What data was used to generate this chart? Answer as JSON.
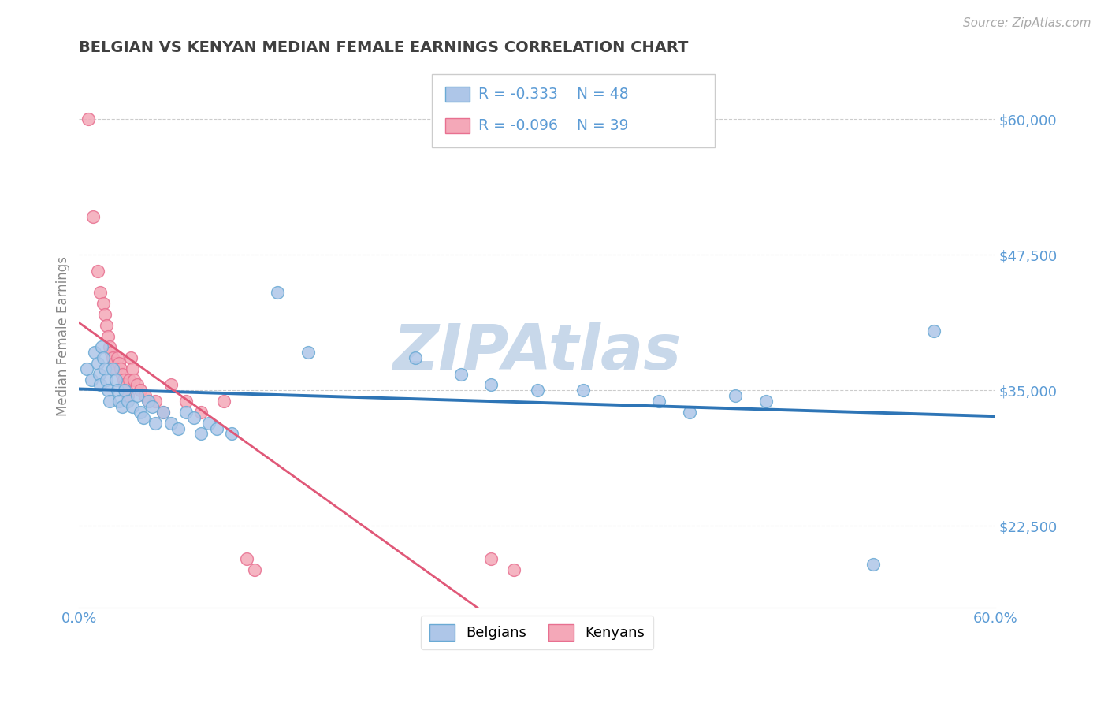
{
  "title": "BELGIAN VS KENYAN MEDIAN FEMALE EARNINGS CORRELATION CHART",
  "source": "Source: ZipAtlas.com",
  "ylabel": "Median Female Earnings",
  "xlim": [
    0.0,
    0.6
  ],
  "ylim": [
    15000,
    65000
  ],
  "yticks": [
    22500,
    35000,
    47500,
    60000
  ],
  "ytick_labels": [
    "$22,500",
    "$35,000",
    "$47,500",
    "$60,000"
  ],
  "xticks": [
    0.0,
    0.6
  ],
  "xtick_labels": [
    "0.0%",
    "60.0%"
  ],
  "legend_labels": [
    "Belgians",
    "Kenyans"
  ],
  "legend_r_n": [
    {
      "r": "-0.333",
      "n": "48"
    },
    {
      "r": "-0.096",
      "n": "39"
    }
  ],
  "blue_color": "#aec6e8",
  "pink_color": "#f4a8b8",
  "blue_edge_color": "#6aaad4",
  "pink_edge_color": "#e87090",
  "blue_line_color": "#2e75b6",
  "pink_line_color": "#e05878",
  "watermark_color": "#c8d8ea",
  "title_color": "#404040",
  "axis_label_color": "#5b9bd5",
  "grid_color": "#cccccc",
  "blue_scatter": [
    [
      0.005,
      37000
    ],
    [
      0.008,
      36000
    ],
    [
      0.01,
      38500
    ],
    [
      0.012,
      37500
    ],
    [
      0.013,
      36500
    ],
    [
      0.014,
      35500
    ],
    [
      0.015,
      39000
    ],
    [
      0.016,
      38000
    ],
    [
      0.017,
      37000
    ],
    [
      0.018,
      36000
    ],
    [
      0.019,
      35000
    ],
    [
      0.02,
      34000
    ],
    [
      0.022,
      37000
    ],
    [
      0.024,
      36000
    ],
    [
      0.025,
      35000
    ],
    [
      0.026,
      34000
    ],
    [
      0.028,
      33500
    ],
    [
      0.03,
      35000
    ],
    [
      0.032,
      34000
    ],
    [
      0.035,
      33500
    ],
    [
      0.038,
      34500
    ],
    [
      0.04,
      33000
    ],
    [
      0.042,
      32500
    ],
    [
      0.045,
      34000
    ],
    [
      0.048,
      33500
    ],
    [
      0.05,
      32000
    ],
    [
      0.055,
      33000
    ],
    [
      0.06,
      32000
    ],
    [
      0.065,
      31500
    ],
    [
      0.07,
      33000
    ],
    [
      0.075,
      32500
    ],
    [
      0.08,
      31000
    ],
    [
      0.085,
      32000
    ],
    [
      0.09,
      31500
    ],
    [
      0.1,
      31000
    ],
    [
      0.13,
      44000
    ],
    [
      0.15,
      38500
    ],
    [
      0.22,
      38000
    ],
    [
      0.25,
      36500
    ],
    [
      0.27,
      35500
    ],
    [
      0.3,
      35000
    ],
    [
      0.33,
      35000
    ],
    [
      0.38,
      34000
    ],
    [
      0.4,
      33000
    ],
    [
      0.43,
      34500
    ],
    [
      0.45,
      34000
    ],
    [
      0.52,
      19000
    ],
    [
      0.56,
      40500
    ]
  ],
  "pink_scatter": [
    [
      0.006,
      60000
    ],
    [
      0.009,
      51000
    ],
    [
      0.012,
      46000
    ],
    [
      0.014,
      44000
    ],
    [
      0.016,
      43000
    ],
    [
      0.017,
      42000
    ],
    [
      0.018,
      41000
    ],
    [
      0.019,
      40000
    ],
    [
      0.02,
      39000
    ],
    [
      0.021,
      38500
    ],
    [
      0.022,
      38000
    ],
    [
      0.023,
      37500
    ],
    [
      0.024,
      37000
    ],
    [
      0.025,
      38000
    ],
    [
      0.026,
      37500
    ],
    [
      0.027,
      37000
    ],
    [
      0.028,
      36500
    ],
    [
      0.029,
      36000
    ],
    [
      0.03,
      35500
    ],
    [
      0.031,
      35000
    ],
    [
      0.032,
      34500
    ],
    [
      0.033,
      36000
    ],
    [
      0.034,
      38000
    ],
    [
      0.035,
      37000
    ],
    [
      0.036,
      36000
    ],
    [
      0.038,
      35500
    ],
    [
      0.04,
      35000
    ],
    [
      0.043,
      34500
    ],
    [
      0.046,
      34000
    ],
    [
      0.05,
      34000
    ],
    [
      0.055,
      33000
    ],
    [
      0.06,
      35500
    ],
    [
      0.07,
      34000
    ],
    [
      0.08,
      33000
    ],
    [
      0.095,
      34000
    ],
    [
      0.11,
      19500
    ],
    [
      0.115,
      18500
    ],
    [
      0.27,
      19500
    ],
    [
      0.285,
      18500
    ]
  ]
}
